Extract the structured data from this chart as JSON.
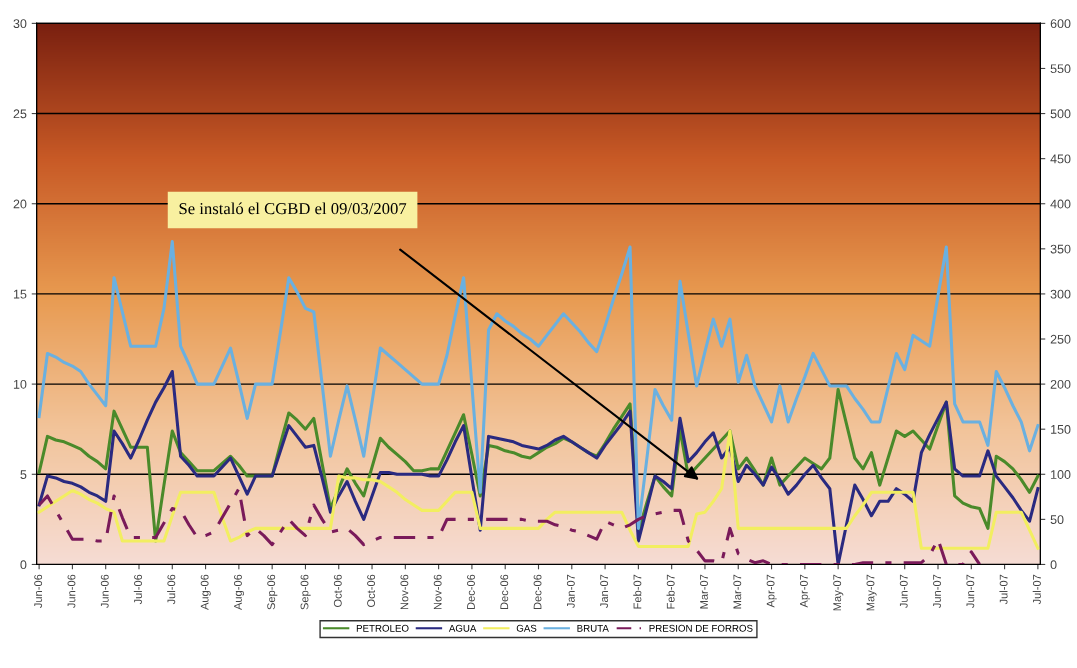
{
  "chart_data": {
    "type": "line",
    "categories": [
      "Jun-06",
      null,
      null,
      null,
      "Jun-06",
      null,
      null,
      null,
      "Jun-06",
      null,
      null,
      null,
      "Jul-06",
      null,
      null,
      null,
      "Jul-06",
      null,
      null,
      null,
      "Aug-06",
      null,
      null,
      null,
      "Aug-06",
      null,
      null,
      null,
      "Sep-06",
      null,
      null,
      null,
      "Sep-06",
      null,
      null,
      null,
      "Oct-06",
      null,
      null,
      null,
      "Oct-06",
      null,
      null,
      null,
      "Nov-06",
      null,
      null,
      null,
      "Nov-06",
      null,
      null,
      null,
      "Dec-06",
      null,
      null,
      null,
      "Dec-06",
      null,
      null,
      null,
      "Dec-06",
      null,
      null,
      null,
      "Jan-07",
      null,
      null,
      null,
      "Jan-07",
      null,
      null,
      null,
      "Feb-07",
      null,
      null,
      null,
      "Feb-07",
      null,
      null,
      null,
      "Mar-07",
      null,
      null,
      null,
      "Mar-07",
      null,
      null,
      null,
      "Apr-07",
      null,
      null,
      null,
      "Apr-07",
      null,
      null,
      null,
      "May-07",
      null,
      null,
      null,
      "May-07",
      null,
      null,
      null,
      "Jun-07",
      null,
      null,
      null,
      "Jun-07",
      null,
      null,
      null,
      "Jun-07",
      null,
      null,
      null,
      "Jul-07",
      null,
      null,
      null,
      "Jul-07"
    ],
    "ylim": [
      0,
      30
    ],
    "yticks": [
      0,
      5,
      10,
      15,
      20,
      25,
      30
    ],
    "y2lim": [
      0,
      600
    ],
    "y2ticks": [
      0,
      50,
      100,
      150,
      200,
      250,
      300,
      350,
      400,
      450,
      500,
      550,
      600
    ],
    "grid": "y",
    "legend": "bottom",
    "annotations": [
      "Se instaló el CGBD el 09/03/2007"
    ],
    "series": [
      {
        "name": "PETROLEO",
        "color": "#4a8a2a",
        "values": [
          5.1,
          7.1,
          6.9,
          6.8,
          6.6,
          6.4,
          6,
          5.7,
          5.3,
          8.5,
          7.5,
          6.5,
          6.5,
          6.5,
          1.3,
          4.4,
          7.4,
          6.2,
          5.7,
          5.2,
          5.2,
          5.2,
          5.6,
          6,
          5.5,
          4.9,
          4.9,
          4.9,
          4.9,
          6.7,
          8.4,
          8,
          7.5,
          8.1,
          5.6,
          3.1,
          4.2,
          5.3,
          4.5,
          3.8,
          5.4,
          7,
          6.5,
          6.1,
          5.7,
          5.2,
          5.2,
          5.3,
          5.3,
          6.3,
          7.3,
          8.3,
          6.1,
          3.8,
          6.6,
          6.5,
          6.3,
          6.2,
          6,
          5.9,
          6.2,
          6.5,
          6.7,
          7,
          6.8,
          6.5,
          6.2,
          6,
          6.7,
          7.5,
          8.2,
          8.9,
          1.8,
          3.4,
          4.9,
          4.3,
          3.8,
          7.5,
          4.9,
          5.4,
          5.9,
          6.4,
          6.9,
          7.4,
          5.3,
          5.9,
          5.2,
          4.4,
          5.9,
          4.4,
          4.9,
          5.4,
          5.9,
          5.6,
          5.3,
          5.9,
          9.7,
          7.8,
          5.9,
          5.3,
          6.2,
          4.4,
          5.9,
          7.4,
          7.1,
          7.4,
          6.9,
          6.4,
          7.7,
          9,
          3.8,
          3.4,
          3.2,
          3.1,
          2,
          6,
          5.7,
          5.3,
          4.7,
          4,
          4.9
        ]
      },
      {
        "name": "AGUA",
        "color": "#2a2a80",
        "values": [
          3.3,
          4.9,
          4.8,
          4.6,
          4.5,
          4.3,
          4,
          3.8,
          3.5,
          7.4,
          6.7,
          5.9,
          6.9,
          8,
          9,
          9.8,
          10.7,
          6,
          5.5,
          4.9,
          4.9,
          4.9,
          5.4,
          5.9,
          4.9,
          3.9,
          4.9,
          4.9,
          4.9,
          6.3,
          7.7,
          7.1,
          6.5,
          6.6,
          4.8,
          2.9,
          3.8,
          4.6,
          3.5,
          2.5,
          3.8,
          5.1,
          5.1,
          5,
          5,
          5,
          5,
          4.9,
          4.9,
          5.8,
          6.8,
          7.7,
          4.8,
          1.9,
          7.1,
          7,
          6.9,
          6.8,
          6.6,
          6.5,
          6.4,
          6.6,
          6.9,
          7.1,
          6.8,
          6.5,
          6.2,
          5.9,
          6.6,
          7.2,
          7.8,
          8.5,
          1.3,
          3.1,
          4.9,
          4.6,
          4.2,
          8.1,
          5.7,
          6.2,
          6.8,
          7.3,
          5.9,
          6.5,
          4.6,
          5.5,
          5,
          4.4,
          5.4,
          4.7,
          3.9,
          4.4,
          5,
          5.5,
          4.8,
          4.2,
          0,
          2.2,
          4.4,
          3.6,
          2.7,
          3.5,
          3.5,
          4.2,
          3.9,
          3.5,
          6.2,
          7.2,
          8.1,
          9,
          5.3,
          4.9,
          4.9,
          4.9,
          6.3,
          4.9,
          4.3,
          3.7,
          3,
          2.4,
          4.2
        ]
      },
      {
        "name": "GAS",
        "color": "#f2ee60",
        "values": [
          2.9,
          3.2,
          3.5,
          3.8,
          4.1,
          3.9,
          3.6,
          3.4,
          3.1,
          2.9,
          1.3,
          1.3,
          1.3,
          1.3,
          1.3,
          1.3,
          2.7,
          4,
          4,
          4,
          4,
          4,
          2.6,
          1.3,
          1.5,
          1.8,
          2,
          2,
          2,
          2,
          2,
          2,
          2,
          2,
          2,
          2,
          4.9,
          4.8,
          4.8,
          4.7,
          4.7,
          4.6,
          4.3,
          4,
          3.6,
          3.3,
          3,
          3,
          3,
          3.5,
          4,
          4,
          4,
          2,
          2,
          2,
          2,
          2,
          2,
          2,
          2,
          2.5,
          2.9,
          2.9,
          2.9,
          2.9,
          2.9,
          2.9,
          2.9,
          2.9,
          2.9,
          1.9,
          1,
          1,
          1,
          1,
          1,
          1,
          1,
          2.8,
          2.9,
          3.5,
          4.2,
          7.4,
          2,
          2,
          2,
          2,
          2,
          2,
          2,
          2,
          2,
          2,
          2,
          2,
          2,
          2,
          2.7,
          3.3,
          4,
          4,
          4,
          4,
          4,
          4,
          0.9,
          0.9,
          0.9,
          0.9,
          0.9,
          0.9,
          0.9,
          0.9,
          0.9,
          2.9,
          2.9,
          2.9,
          2.9,
          1.9,
          0.9
        ]
      },
      {
        "name": "BRUTA",
        "color": "#6ab0e0",
        "values": [
          8.2,
          11.7,
          11.5,
          11.2,
          11,
          10.7,
          10,
          9.4,
          8.8,
          15.9,
          14,
          12.1,
          12.1,
          12.1,
          12.1,
          14.2,
          17.9,
          12.1,
          11.1,
          10,
          10,
          10,
          11,
          12,
          10.1,
          8.1,
          10,
          10,
          10,
          12.9,
          15.9,
          15.1,
          14.2,
          14,
          10,
          6,
          8,
          9.9,
          8,
          6,
          9,
          12,
          11.6,
          11.2,
          10.8,
          10.4,
          10,
          10,
          10,
          11.6,
          13.8,
          15.9,
          9.9,
          4,
          13,
          13.9,
          13.5,
          13.2,
          12.8,
          12.5,
          12.1,
          12.7,
          13.3,
          13.9,
          13.4,
          12.9,
          12.3,
          11.8,
          13.2,
          14.7,
          16.1,
          17.6,
          2,
          5.8,
          9.7,
          8.8,
          8,
          15.7,
          12.8,
          9.9,
          11.8,
          13.6,
          12.1,
          13.6,
          10.1,
          11.6,
          9.9,
          8.9,
          7.9,
          9.9,
          7.9,
          9.2,
          10.4,
          11.7,
          10.8,
          9.9,
          9.9,
          9.9,
          9.2,
          8.6,
          7.9,
          7.9,
          9.8,
          11.7,
          10.8,
          12.7,
          12.4,
          12.1,
          14.9,
          17.6,
          8.9,
          7.9,
          7.9,
          7.9,
          6.6,
          10.7,
          9.8,
          8.8,
          7.9,
          6.3,
          7.7
        ]
      },
      {
        "name": "PRESION DE FORROS",
        "color": "#7a1a5a",
        "line_style": "dashed",
        "values": [
          3.3,
          3.8,
          3,
          2.2,
          1.4,
          1.4,
          1.4,
          1.3,
          1.3,
          3.8,
          2.6,
          1.5,
          1.5,
          1.5,
          1.5,
          2.3,
          3.1,
          3,
          2.2,
          1.5,
          1.6,
          1.8,
          2.6,
          3.4,
          4.2,
          1.6,
          2,
          1.6,
          1.1,
          1.8,
          2.5,
          2,
          1.6,
          3.3,
          2.5,
          1.8,
          1.9,
          2,
          1.6,
          1.1,
          1.3,
          1.5,
          1.5,
          1.5,
          1.5,
          1.5,
          1.5,
          1.5,
          1.5,
          2.5,
          2.5,
          2.5,
          2.5,
          2.5,
          2.5,
          2.5,
          2.5,
          2.5,
          2.5,
          2.4,
          2.4,
          2.4,
          2.2,
          2.1,
          1.9,
          1.8,
          1.6,
          1.4,
          2.4,
          2.2,
          2,
          2.2,
          2.5,
          2.7,
          2.8,
          2.9,
          3,
          3,
          1.3,
          0.8,
          0.2,
          0.2,
          0.1,
          2,
          0.6,
          0.3,
          0.1,
          0.2,
          0,
          0,
          0,
          0,
          0,
          0,
          0,
          0,
          0,
          0,
          0,
          0.1,
          0.1,
          0.1,
          0.1,
          0.1,
          0.1,
          0.1,
          0.1,
          0.5,
          1.4,
          0,
          0,
          0,
          0.7,
          0,
          null,
          null,
          null,
          null,
          null,
          null,
          null
        ]
      }
    ]
  }
}
